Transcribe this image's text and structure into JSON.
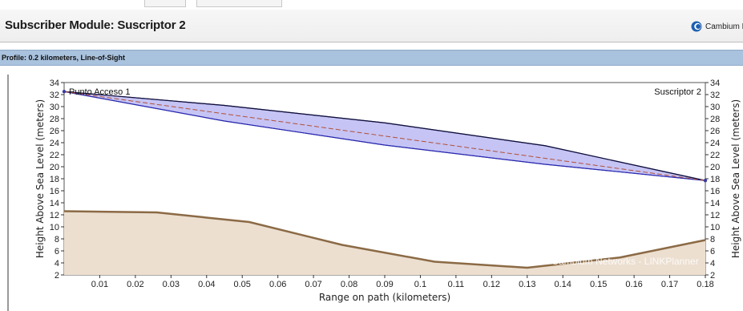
{
  "window": {
    "title": "Subscriber Module: Suscriptor 2",
    "brand": "Cambium Ne"
  },
  "profile": {
    "label": "Profile: 0.2 kilometers, Line-of-Sight"
  },
  "colors": {
    "profile_bar": "#a9c2de",
    "fresnel_fill": "#b3b0f0",
    "fresnel_edge": "#2a2ab0",
    "terrain_fill": "#ecdfd0",
    "terrain_line": "#8b6a45",
    "los_line": "#b0503a"
  },
  "chart_data": {
    "type": "area",
    "xlabel": "Range on path (kilometers)",
    "ylabel_left": "Height Above Sea Level (meters)",
    "ylabel_right": "Height Above Sea Level (meters)",
    "xlim": [
      0,
      0.18
    ],
    "ylim": [
      2,
      34
    ],
    "x_ticks": [
      "0.01",
      "0.02",
      "0.03",
      "0.04",
      "0.05",
      "0.06",
      "0.07",
      "0.08",
      "0.09",
      "0.1",
      "0.11",
      "0.12",
      "0.13",
      "0.14",
      "0.15",
      "0.16",
      "0.17",
      "0.18"
    ],
    "y_ticks": [
      "34",
      "32",
      "30",
      "28",
      "26",
      "24",
      "22",
      "20",
      "18",
      "16",
      "14",
      "12",
      "10",
      "8",
      "6",
      "4",
      "2"
    ],
    "grid": false,
    "endpoints": {
      "left": {
        "name": "Punto Acceso 1",
        "height": 32.5
      },
      "right": {
        "name": "Suscriptor 2",
        "height": 17.7
      }
    },
    "line_of_sight": {
      "x": [
        0,
        0.18
      ],
      "y": [
        32.5,
        17.7
      ]
    },
    "fresnel_zone": {
      "x": [
        0,
        0.045,
        0.09,
        0.135,
        0.18
      ],
      "upper": [
        32.5,
        30.2,
        27.3,
        23.5,
        17.7
      ],
      "lower": [
        32.5,
        27.6,
        23.6,
        20.4,
        17.7
      ]
    },
    "terrain": {
      "x": [
        0,
        0.026,
        0.052,
        0.078,
        0.104,
        0.13,
        0.156,
        0.18
      ],
      "y": [
        12.6,
        12.4,
        10.8,
        7.0,
        4.2,
        3.2,
        4.9,
        7.8
      ]
    },
    "watermark": "Cambium Networks - LINKPlanner"
  }
}
